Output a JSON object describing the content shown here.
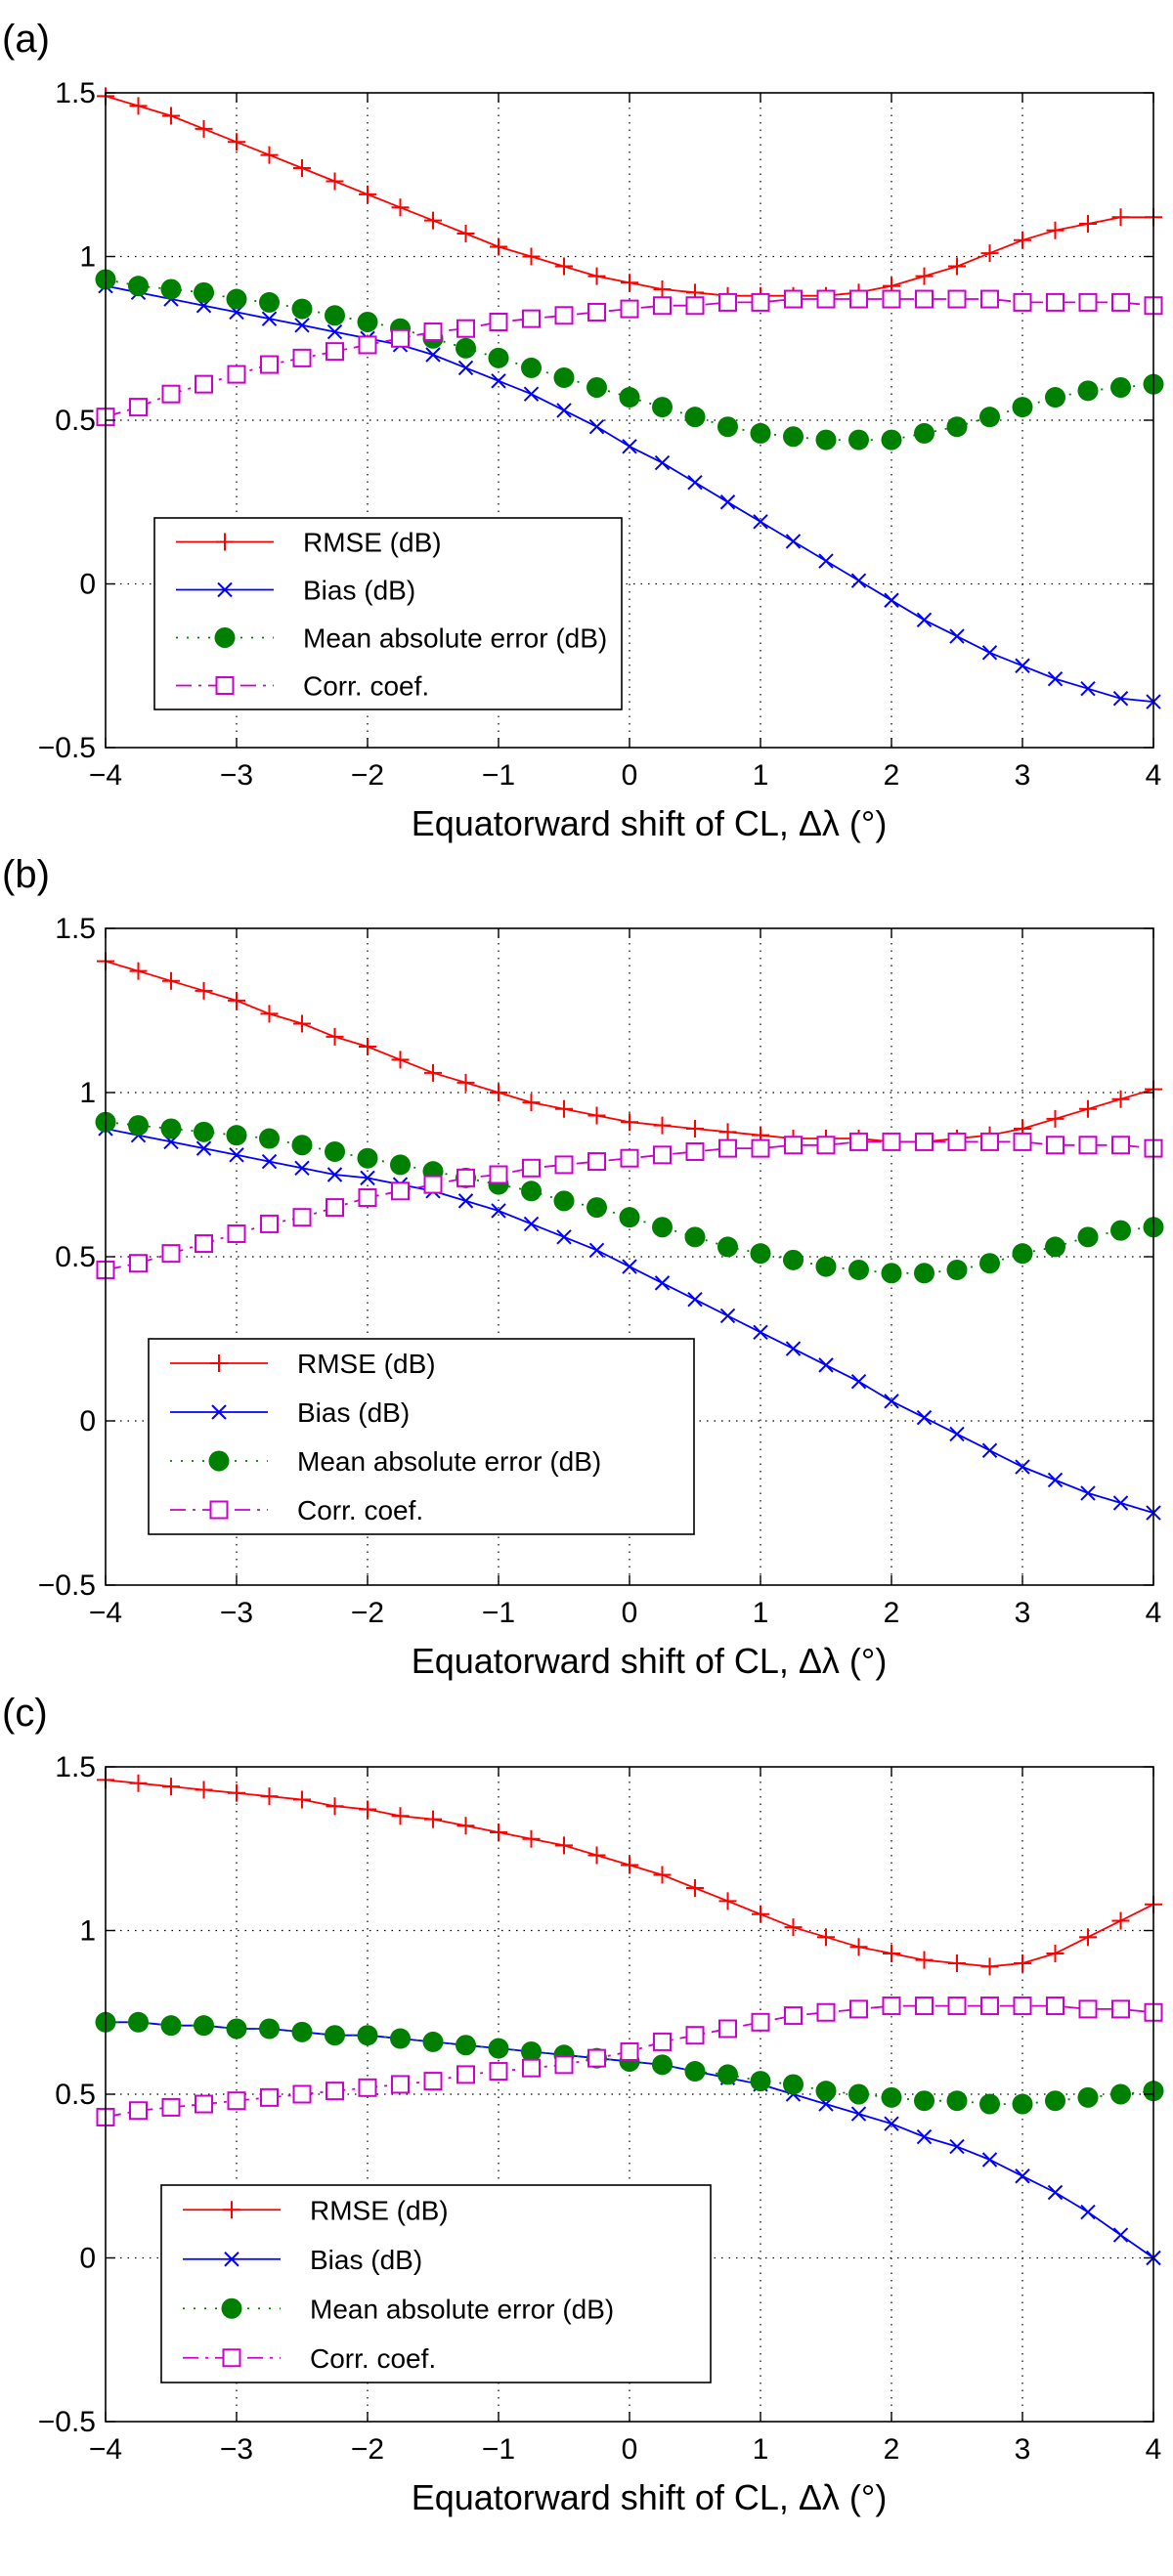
{
  "chart_data": [
    {
      "type": "line",
      "panel_label": "(a)",
      "xlabel": "Equatorward shift of CL, Δλ (°)",
      "ylabel": "",
      "xlim": [
        -4,
        4
      ],
      "ylim": [
        -0.5,
        1.5
      ],
      "xticks": [
        "−4",
        "−3",
        "−2",
        "−1",
        "0",
        "1",
        "2",
        "3",
        "4"
      ],
      "yticks": [
        "−0.5",
        "0",
        "0.5",
        "1",
        "1.5"
      ],
      "grid": true,
      "legend_position": "lower-left",
      "x": [
        -4,
        -3.75,
        -3.5,
        -3.25,
        -3,
        -2.75,
        -2.5,
        -2.25,
        -2,
        -1.75,
        -1.5,
        -1.25,
        -1,
        -0.75,
        -0.5,
        -0.25,
        0,
        0.25,
        0.5,
        0.75,
        1,
        1.25,
        1.5,
        1.75,
        2,
        2.25,
        2.5,
        2.75,
        3,
        3.25,
        3.5,
        3.75,
        4
      ],
      "series": [
        {
          "name": "RMSE (dB)",
          "color": "#ff0000",
          "marker": "plus",
          "line": "solid",
          "values": [
            1.49,
            1.46,
            1.43,
            1.39,
            1.35,
            1.31,
            1.27,
            1.23,
            1.19,
            1.15,
            1.11,
            1.07,
            1.03,
            1.0,
            0.97,
            0.94,
            0.92,
            0.9,
            0.89,
            0.88,
            0.88,
            0.88,
            0.88,
            0.89,
            0.91,
            0.94,
            0.97,
            1.01,
            1.05,
            1.08,
            1.1,
            1.12,
            1.12
          ]
        },
        {
          "name": "Bias (dB)",
          "color": "#0000ff",
          "marker": "x",
          "line": "solid",
          "values": [
            0.91,
            0.89,
            0.87,
            0.85,
            0.83,
            0.81,
            0.79,
            0.77,
            0.75,
            0.73,
            0.7,
            0.66,
            0.62,
            0.58,
            0.53,
            0.48,
            0.42,
            0.37,
            0.31,
            0.25,
            0.19,
            0.13,
            0.07,
            0.01,
            -0.05,
            -0.11,
            -0.16,
            -0.21,
            -0.25,
            -0.29,
            -0.32,
            -0.35,
            -0.36
          ]
        },
        {
          "name": "Mean absolute error (dB)",
          "color": "#008000",
          "marker": "filled-circle",
          "line": "dotted",
          "values": [
            0.93,
            0.91,
            0.9,
            0.89,
            0.87,
            0.86,
            0.84,
            0.82,
            0.8,
            0.78,
            0.75,
            0.72,
            0.69,
            0.66,
            0.63,
            0.6,
            0.57,
            0.54,
            0.51,
            0.48,
            0.46,
            0.45,
            0.44,
            0.44,
            0.44,
            0.46,
            0.48,
            0.51,
            0.54,
            0.57,
            0.59,
            0.6,
            0.61
          ]
        },
        {
          "name": "Corr. coef.",
          "color": "#cc00cc",
          "marker": "open-square",
          "line": "dashdot",
          "values": [
            0.51,
            0.54,
            0.58,
            0.61,
            0.64,
            0.67,
            0.69,
            0.71,
            0.73,
            0.75,
            0.77,
            0.78,
            0.8,
            0.81,
            0.82,
            0.83,
            0.84,
            0.85,
            0.85,
            0.86,
            0.86,
            0.87,
            0.87,
            0.87,
            0.87,
            0.87,
            0.87,
            0.87,
            0.86,
            0.86,
            0.86,
            0.86,
            0.85
          ]
        }
      ]
    },
    {
      "type": "line",
      "panel_label": "(b)",
      "xlabel": "Equatorward shift of CL, Δλ (°)",
      "ylabel": "",
      "xlim": [
        -4,
        4
      ],
      "ylim": [
        -0.5,
        1.5
      ],
      "xticks": [
        "−4",
        "−3",
        "−2",
        "−1",
        "0",
        "1",
        "2",
        "3",
        "4"
      ],
      "yticks": [
        "−0.5",
        "0",
        "0.5",
        "1",
        "1.5"
      ],
      "grid": true,
      "legend_position": "lower-left",
      "x": [
        -4,
        -3.75,
        -3.5,
        -3.25,
        -3,
        -2.75,
        -2.5,
        -2.25,
        -2,
        -1.75,
        -1.5,
        -1.25,
        -1,
        -0.75,
        -0.5,
        -0.25,
        0,
        0.25,
        0.5,
        0.75,
        1,
        1.25,
        1.5,
        1.75,
        2,
        2.25,
        2.5,
        2.75,
        3,
        3.25,
        3.5,
        3.75,
        4
      ],
      "series": [
        {
          "name": "RMSE (dB)",
          "color": "#ff0000",
          "marker": "plus",
          "line": "solid",
          "values": [
            1.4,
            1.37,
            1.34,
            1.31,
            1.28,
            1.24,
            1.21,
            1.17,
            1.14,
            1.1,
            1.06,
            1.03,
            1.0,
            0.97,
            0.95,
            0.93,
            0.91,
            0.9,
            0.89,
            0.88,
            0.87,
            0.86,
            0.86,
            0.86,
            0.85,
            0.85,
            0.86,
            0.87,
            0.89,
            0.92,
            0.95,
            0.98,
            1.01
          ]
        },
        {
          "name": "Bias (dB)",
          "color": "#0000ff",
          "marker": "x",
          "line": "solid",
          "values": [
            0.89,
            0.87,
            0.85,
            0.83,
            0.81,
            0.79,
            0.77,
            0.75,
            0.74,
            0.72,
            0.7,
            0.67,
            0.64,
            0.6,
            0.56,
            0.52,
            0.47,
            0.42,
            0.37,
            0.32,
            0.27,
            0.22,
            0.17,
            0.12,
            0.06,
            0.01,
            -0.04,
            -0.09,
            -0.14,
            -0.18,
            -0.22,
            -0.25,
            -0.28
          ]
        },
        {
          "name": "Mean absolute error (dB)",
          "color": "#008000",
          "marker": "filled-circle",
          "line": "dotted",
          "values": [
            0.91,
            0.9,
            0.89,
            0.88,
            0.87,
            0.86,
            0.84,
            0.82,
            0.8,
            0.78,
            0.76,
            0.74,
            0.72,
            0.7,
            0.67,
            0.65,
            0.62,
            0.59,
            0.56,
            0.53,
            0.51,
            0.49,
            0.47,
            0.46,
            0.45,
            0.45,
            0.46,
            0.48,
            0.51,
            0.53,
            0.56,
            0.58,
            0.59
          ]
        },
        {
          "name": "Corr. coef.",
          "color": "#cc00cc",
          "marker": "open-square",
          "line": "dashdot",
          "values": [
            0.46,
            0.48,
            0.51,
            0.54,
            0.57,
            0.6,
            0.62,
            0.65,
            0.68,
            0.7,
            0.72,
            0.74,
            0.75,
            0.77,
            0.78,
            0.79,
            0.8,
            0.81,
            0.82,
            0.83,
            0.83,
            0.84,
            0.84,
            0.85,
            0.85,
            0.85,
            0.85,
            0.85,
            0.85,
            0.84,
            0.84,
            0.84,
            0.83
          ]
        }
      ]
    },
    {
      "type": "line",
      "panel_label": "(c)",
      "xlabel": "Equatorward shift of CL, Δλ (°)",
      "ylabel": "",
      "xlim": [
        -4,
        4
      ],
      "ylim": [
        -0.5,
        1.5
      ],
      "xticks": [
        "−4",
        "−3",
        "−2",
        "−1",
        "0",
        "1",
        "2",
        "3",
        "4"
      ],
      "yticks": [
        "−0.5",
        "0",
        "0.5",
        "1",
        "1.5"
      ],
      "grid": true,
      "legend_position": "lower-left",
      "x": [
        -4,
        -3.75,
        -3.5,
        -3.25,
        -3,
        -2.75,
        -2.5,
        -2.25,
        -2,
        -1.75,
        -1.5,
        -1.25,
        -1,
        -0.75,
        -0.5,
        -0.25,
        0,
        0.25,
        0.5,
        0.75,
        1,
        1.25,
        1.5,
        1.75,
        2,
        2.25,
        2.5,
        2.75,
        3,
        3.25,
        3.5,
        3.75,
        4
      ],
      "series": [
        {
          "name": "RMSE (dB)",
          "color": "#ff0000",
          "marker": "plus",
          "line": "solid",
          "values": [
            1.46,
            1.45,
            1.44,
            1.43,
            1.42,
            1.41,
            1.4,
            1.38,
            1.37,
            1.35,
            1.34,
            1.32,
            1.3,
            1.28,
            1.26,
            1.23,
            1.2,
            1.17,
            1.13,
            1.09,
            1.05,
            1.01,
            0.98,
            0.95,
            0.93,
            0.91,
            0.9,
            0.89,
            0.9,
            0.93,
            0.98,
            1.03,
            1.08
          ]
        },
        {
          "name": "Bias (dB)",
          "color": "#0000ff",
          "marker": "x",
          "line": "solid",
          "values": [
            0.72,
            0.72,
            0.71,
            0.71,
            0.7,
            0.7,
            0.69,
            0.68,
            0.68,
            0.67,
            0.66,
            0.65,
            0.64,
            0.63,
            0.62,
            0.61,
            0.6,
            0.59,
            0.57,
            0.55,
            0.53,
            0.5,
            0.47,
            0.44,
            0.41,
            0.37,
            0.34,
            0.3,
            0.25,
            0.2,
            0.14,
            0.07,
            0.0
          ]
        },
        {
          "name": "Mean absolute error (dB)",
          "color": "#008000",
          "marker": "filled-circle",
          "line": "dotted",
          "values": [
            0.72,
            0.72,
            0.71,
            0.71,
            0.7,
            0.7,
            0.69,
            0.68,
            0.68,
            0.67,
            0.66,
            0.65,
            0.64,
            0.63,
            0.62,
            0.61,
            0.6,
            0.59,
            0.57,
            0.56,
            0.54,
            0.53,
            0.51,
            0.5,
            0.49,
            0.48,
            0.48,
            0.47,
            0.47,
            0.48,
            0.49,
            0.5,
            0.51
          ]
        },
        {
          "name": "Corr. coef.",
          "color": "#cc00cc",
          "marker": "open-square",
          "line": "dashdot",
          "values": [
            0.43,
            0.45,
            0.46,
            0.47,
            0.48,
            0.49,
            0.5,
            0.51,
            0.52,
            0.53,
            0.54,
            0.56,
            0.57,
            0.58,
            0.59,
            0.61,
            0.63,
            0.66,
            0.68,
            0.7,
            0.72,
            0.74,
            0.75,
            0.76,
            0.77,
            0.77,
            0.77,
            0.77,
            0.77,
            0.77,
            0.76,
            0.76,
            0.75
          ]
        }
      ]
    }
  ]
}
